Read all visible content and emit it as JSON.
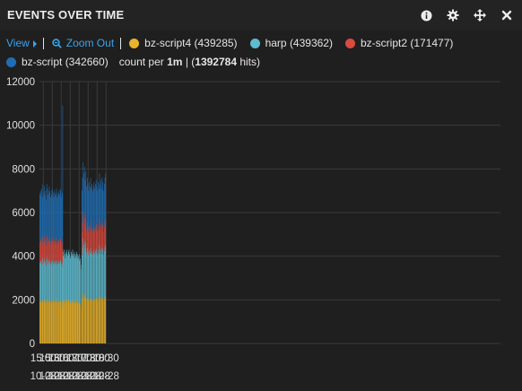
{
  "panel": {
    "title": "EVENTS OVER TIME",
    "icons": [
      "info-icon",
      "gear-icon",
      "move-icon",
      "close-icon"
    ]
  },
  "legend": {
    "view_label": "View",
    "zoom_label": "Zoom Out",
    "items": [
      {
        "name": "bz-script4",
        "count_text": "(439285)",
        "color": "#e9b32b"
      },
      {
        "name": "harp",
        "count_text": "(439362)",
        "color": "#5ebcd0"
      },
      {
        "name": "bz-script2",
        "count_text": "(171477)",
        "color": "#db4a3e"
      },
      {
        "name": "bz-script",
        "count_text": "(342660)",
        "color": "#1f6eb4"
      }
    ],
    "count_prefix": "count per",
    "interval": "1m",
    "separator": "|",
    "open_paren": "(",
    "hits_total": "1392784",
    "hits_suffix": "hits)"
  },
  "chart_data": {
    "type": "bar",
    "stacked": true,
    "interval_minutes": 1,
    "x_range": [
      "14:47",
      "16:31"
    ],
    "ylim": [
      0,
      12000
    ],
    "y_ticks": [
      0,
      2000,
      4000,
      6000,
      8000,
      10000,
      12000
    ],
    "x_ticks": [
      {
        "time": "15:00",
        "date": "10-28"
      },
      {
        "time": "15:30",
        "date": "10-28"
      },
      {
        "time": "16:00",
        "date": "10-28"
      },
      {
        "time": "16:30",
        "date": "10-28"
      },
      {
        "time": "17:00",
        "date": "10-28"
      },
      {
        "time": "17:30",
        "date": "10-28"
      },
      {
        "time": "18:00",
        "date": "10-28"
      },
      {
        "time": "18:30",
        "date": "10-28"
      }
    ],
    "grid": true,
    "series": [
      {
        "name": "bz-script4",
        "color": "#e9b32b"
      },
      {
        "name": "harp",
        "color": "#5ebcd0"
      },
      {
        "name": "bz-script2",
        "color": "#db4a3e"
      },
      {
        "name": "bz-script",
        "color": "#1f6eb4"
      }
    ],
    "segments": [
      {
        "from": "14:47",
        "to": "16:04",
        "totals": [
          6900,
          6800,
          7000,
          7100,
          6700,
          7300,
          6900,
          7200,
          6800,
          7000,
          6600,
          7300,
          7100,
          6800,
          7000,
          7200,
          6900,
          6700,
          7000,
          6800,
          7100,
          6900,
          6700,
          7000,
          6800,
          6900,
          7100,
          6700,
          6800,
          7000,
          6900,
          6800,
          7100,
          7000,
          6700,
          6900
        ],
        "shares": {
          "bz-script4": 0.28,
          "harp": 0.26,
          "bz-script2": 0.14,
          "bz-script": 0.32
        }
      },
      {
        "from": "16:04",
        "to": "16:05",
        "totals": [
          10900
        ],
        "shares": {
          "bz-script4": 0.15,
          "harp": 0.17,
          "bz-script2": 0.08,
          "bz-script": 0.6
        }
      },
      {
        "from": "16:05",
        "to": "17:05",
        "totals": [
          4200,
          4000,
          4300,
          4100,
          3900,
          4200,
          4300,
          4100,
          4000,
          4200,
          4300,
          4100,
          3900,
          4000,
          4200,
          4100,
          4300,
          4000,
          4100,
          4200,
          3900,
          4100,
          4000,
          4200,
          4100,
          3900,
          4000,
          4100,
          3800,
          3900
        ],
        "shares": {
          "bz-script4": 0.47,
          "harp": 0.53,
          "bz-script2": 0.0,
          "bz-script": 0.0
        }
      },
      {
        "from": "17:05",
        "to": "17:08",
        "totals": [
          3600
        ],
        "shares": {
          "bz-script4": 0.45,
          "harp": 0.5,
          "bz-script2": 0.05,
          "bz-script": 0.0
        }
      },
      {
        "from": "17:08",
        "to": "18:30",
        "totals": [
          7000,
          7600,
          8300,
          7800,
          8100,
          7500,
          7900,
          7200,
          7600,
          7300,
          7000,
          7400,
          7200,
          7600,
          7100,
          7300,
          7000,
          7200,
          7400,
          7100,
          7300,
          7500,
          7200,
          7000,
          7400,
          7100,
          7800,
          7300,
          7500,
          7100,
          7600,
          7400,
          7000,
          7300,
          7600,
          7800
        ],
        "shares": {
          "bz-script4": 0.28,
          "harp": 0.3,
          "bz-script2": 0.15,
          "bz-script": 0.27
        }
      }
    ]
  }
}
